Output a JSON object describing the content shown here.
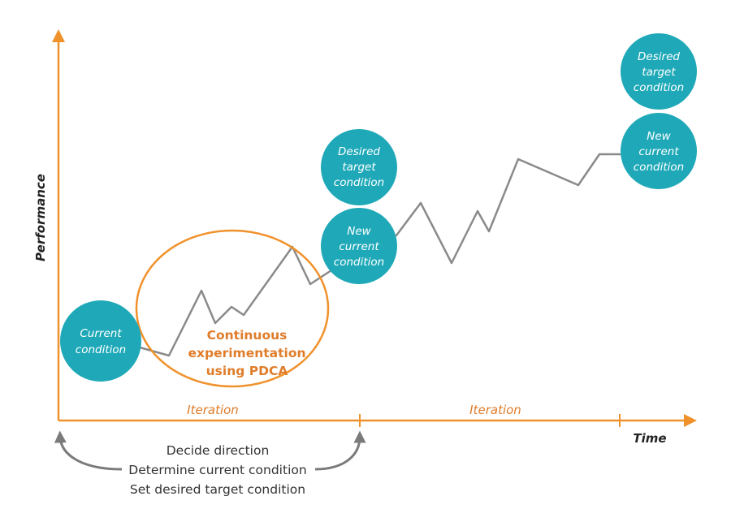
{
  "colors": {
    "accent": "#f0922c",
    "bubble": "#1fa9b8",
    "line": "#8a8a8a",
    "arrow_gray": "#7a7a7a",
    "text_dark": "#333333",
    "pdca_text": "#e07d2b"
  },
  "axes": {
    "y_label": "Performance",
    "x_label": "Time"
  },
  "iterations": [
    "Iteration",
    "Iteration"
  ],
  "pdca_label": [
    "Continuous",
    "experimentation",
    "using PDCA"
  ],
  "bubbles": {
    "current": [
      "Current",
      "condition"
    ],
    "desired_1": [
      "Desired",
      "target",
      "condition"
    ],
    "new_current_1": [
      "New",
      "current",
      "condition"
    ],
    "desired_2": [
      "Desired",
      "target",
      "condition"
    ],
    "new_current_2": [
      "New",
      "current",
      "condition"
    ]
  },
  "bottom_steps": [
    "Decide direction",
    "Determine current condition",
    "Set desired target condition"
  ]
}
